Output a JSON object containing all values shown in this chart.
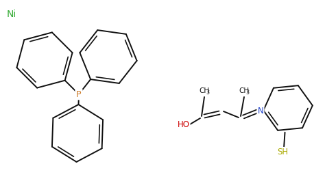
{
  "bg_color": "#ffffff",
  "ni_color": "#33aa33",
  "ni_text": "Ni",
  "p_color": "#cc7722",
  "p_text": "P",
  "ho_color": "#cc0000",
  "ho_text": "HO",
  "n_color": "#2244cc",
  "n_text": "N",
  "sh_color": "#aaaa00",
  "sh_text": "SH",
  "ch3_color": "#111111",
  "ch3_text": "CH",
  "ch3_sub": "3",
  "bond_color": "#111111",
  "bond_lw": 1.4,
  "font_size_atom": 8.5,
  "font_size_ni": 10,
  "font_size_ch3": 7.5
}
